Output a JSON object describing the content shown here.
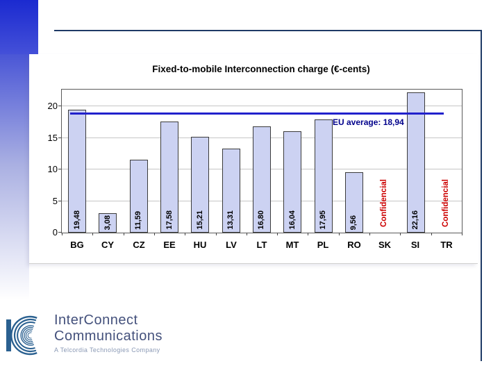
{
  "slide": {
    "accent_color_top": "#1b2ad0",
    "frame_color": "#1e3a66",
    "background": "#ffffff"
  },
  "chart_data": {
    "type": "bar",
    "title": "Fixed-to-mobile Interconnection charge (€-cents)",
    "categories": [
      "BG",
      "CY",
      "CZ",
      "EE",
      "HU",
      "LV",
      "LT",
      "MT",
      "PL",
      "RO",
      "SK",
      "SI",
      "TR"
    ],
    "values": [
      19.48,
      3.08,
      11.59,
      17.58,
      15.21,
      13.31,
      16.8,
      16.04,
      17.95,
      9.56,
      null,
      22.16,
      null
    ],
    "value_labels": [
      "19,48",
      "3,08",
      "11,59",
      "17,58",
      "15,21",
      "13,31",
      "16,80",
      "16,04",
      "17,95",
      "9,56",
      "Confidencial",
      "22,16",
      "Confidencial"
    ],
    "yticks": [
      0,
      5,
      10,
      15,
      20
    ],
    "ylim": [
      0,
      22.65
    ],
    "grid": true,
    "reference_line": {
      "value": 18.94,
      "label": "EU average: 18,94",
      "color": "#2121cc"
    },
    "bar_fill": "#ccd2f2",
    "bar_border": "#3a3a3a",
    "confidential_color": "#cc0000"
  },
  "logo": {
    "line1": "InterConnect",
    "line2": "Communications",
    "tagline": "A Telcordia Technologies Company"
  }
}
